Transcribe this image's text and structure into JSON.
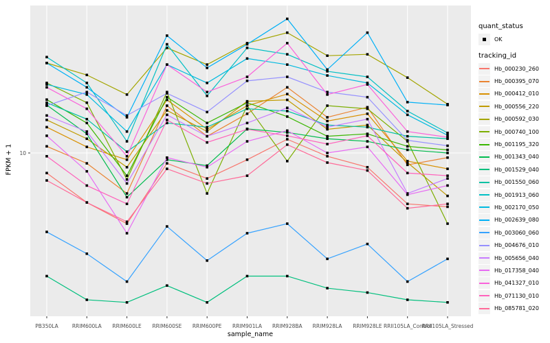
{
  "figure": {
    "background": "#FFFFFF",
    "panel_background": "#EBEBEB",
    "gridline_color": "#FFFFFF",
    "tick_color": "#333333",
    "tick_text_color": "#4D4D4D",
    "marker_color": "#000000"
  },
  "legend": {
    "quant_status_title": "quant_status",
    "ok_label": "OK",
    "tracking_id_title": "tracking_id",
    "key_background": "#F2F2F2"
  },
  "chart_data": {
    "type": "line",
    "title": "",
    "xlabel": "sample_name",
    "ylabel": "FPKM + 1",
    "y_scale": "log10",
    "y_tick_values": [
      10
    ],
    "y_tick_labels": [
      "10"
    ],
    "ylim": [
      0.9,
      100
    ],
    "grid": "major",
    "legend_position": "right",
    "point_shape": "filled-square-black",
    "categories": [
      "PB350LA",
      "RRIM600LA",
      "RRIM600LE",
      "RRIM600SE",
      "RRIM600PE",
      "RRIM901LA",
      "RRIM928BA",
      "RRIM928LA",
      "RRIM928LE",
      "RRII105LA_Control",
      "RRII105LA_Stressed"
    ],
    "series": [
      {
        "name": "Hb_000230_260",
        "color": "#F8766D",
        "values": [
          7.3,
          4.6,
          3.3,
          8.5,
          6.7,
          9.0,
          12.4,
          9.5,
          8.0,
          4.5,
          4.3
        ]
      },
      {
        "name": "Hb_000395_070",
        "color": "#EA8331",
        "values": [
          11.1,
          8.5,
          5.3,
          21,
          13,
          18.5,
          28,
          17.5,
          20.5,
          8.3,
          9.3
        ]
      },
      {
        "name": "Hb_000412_010",
        "color": "#D89000",
        "values": [
          15,
          11,
          9.0,
          23,
          14.5,
          21,
          25.2,
          16.5,
          18.5,
          8.8,
          7.8
        ]
      },
      {
        "name": "Hb_000556_220",
        "color": "#C09B00",
        "values": [
          16.8,
          12.5,
          8.0,
          19.5,
          14,
          22.5,
          23,
          14.5,
          15.5,
          8.6,
          5.1
        ]
      },
      {
        "name": "Hb_000592_030",
        "color": "#A3A500",
        "values": [
          41,
          34,
          25,
          52,
          40,
          56,
          66,
          46,
          47,
          32.6,
          21.5
        ]
      },
      {
        "name": "Hb_000740_100",
        "color": "#7CAE00",
        "values": [
          30,
          22,
          6.6,
          26,
          5.3,
          21,
          8.8,
          21,
          20,
          12,
          3.3
        ]
      },
      {
        "name": "Hb_001195_320",
        "color": "#39B600",
        "values": [
          23.1,
          16,
          7.0,
          24,
          16,
          22,
          17.7,
          13,
          13.5,
          11.1,
          10.5
        ]
      },
      {
        "name": "Hb_001343_040",
        "color": "#00BB4E",
        "values": [
          21.2,
          13.5,
          5.0,
          9.0,
          8.2,
          14.6,
          13.8,
          12.5,
          12,
          10.5,
          10
        ]
      },
      {
        "name": "Hb_001529_040",
        "color": "#00BF7D",
        "values": [
          1.45,
          1.0,
          0.96,
          1.25,
          0.96,
          1.45,
          1.45,
          1.2,
          1.12,
          1.0,
          0.96
        ]
      },
      {
        "name": "Hb_001550_060",
        "color": "#00C1A3",
        "values": [
          22,
          17,
          10.2,
          16,
          15,
          20,
          19.3,
          15.5,
          15,
          13,
          12.5
        ]
      },
      {
        "name": "Hb_001913_060",
        "color": "#00BFC4",
        "values": [
          45,
          30,
          12,
          55,
          24.5,
          52,
          47,
          36,
          33,
          19.3,
          13.7
        ]
      },
      {
        "name": "Hb_002170_050",
        "color": "#00BAE0",
        "values": [
          29.3,
          25,
          14,
          40,
          30,
          44,
          40,
          33.7,
          30,
          18.2,
          13.2
        ]
      },
      {
        "name": "Hb_002639_080",
        "color": "#00B0F6",
        "values": [
          41,
          28,
          17.5,
          63,
          38,
          55,
          82,
          37,
          66,
          22.2,
          21.2
        ]
      },
      {
        "name": "Hb_003060_060",
        "color": "#35A2FF",
        "values": [
          2.9,
          2.06,
          1.33,
          3.16,
          1.85,
          2.84,
          3.3,
          1.9,
          2.4,
          1.33,
          1.9
        ]
      },
      {
        "name": "Hb_004676_010",
        "color": "#9590FF",
        "values": [
          21,
          26,
          18,
          25.5,
          19,
          31,
          33,
          26,
          24,
          12.2,
          11.2
        ]
      },
      {
        "name": "Hb_005656_040",
        "color": "#C77CFF",
        "values": [
          18,
          14,
          6.2,
          18.2,
          13,
          16,
          20.3,
          15,
          17,
          5.3,
          6.7
        ]
      },
      {
        "name": "Hb_017358_040",
        "color": "#E76BF3",
        "values": [
          13.1,
          7.5,
          2.84,
          9.3,
          8.0,
          12,
          14.2,
          10,
          11,
          5.2,
          6.0
        ]
      },
      {
        "name": "Hb_041327_010",
        "color": "#FA62DB",
        "values": [
          28,
          20,
          9.5,
          40,
          26,
          33,
          56,
          25,
          29.3,
          14,
          12.8
        ]
      },
      {
        "name": "Hb_071130_010",
        "color": "#FF62BC",
        "values": [
          9.5,
          6.0,
          4.5,
          16.8,
          11.8,
          14.5,
          13.1,
          11.5,
          13.1,
          7.3,
          7.0
        ]
      },
      {
        "name": "Hb_085781_020",
        "color": "#FF6A98",
        "values": [
          6.5,
          4.6,
          3.4,
          7.8,
          6.2,
          7.0,
          11.4,
          8.6,
          7.6,
          4.2,
          4.5
        ]
      }
    ]
  }
}
